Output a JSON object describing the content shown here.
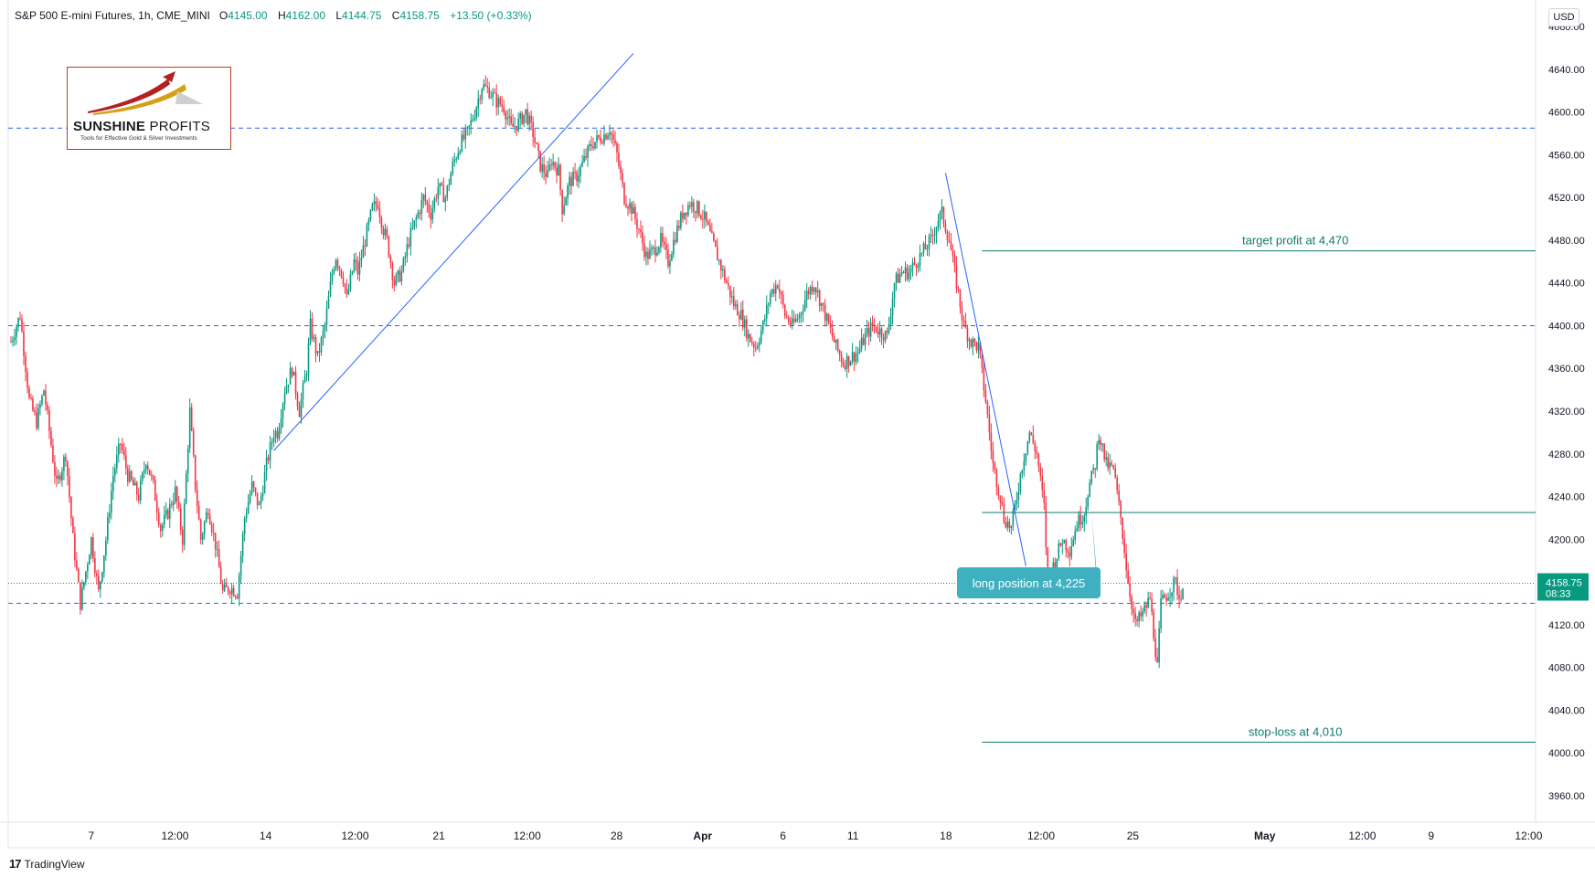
{
  "header": {
    "instrument": "S&P 500 E-mini Futures, 1h, CME_MINI",
    "open_label": "O",
    "open": "4145.00",
    "high_label": "H",
    "high": "4162.00",
    "low_label": "L",
    "low": "4144.75",
    "close_label": "C",
    "close": "4158.75",
    "change": "+13.50 (+0.33%)"
  },
  "currency_button": "USD",
  "logo": {
    "name_bold": "SUNSHINE",
    "name_rest": " PROFITS",
    "tagline": "Tools for Effective Gold & Silver Investments"
  },
  "footer": {
    "brand": "TradingView",
    "icon": "tradingview-logo-icon"
  },
  "colors": {
    "up": "#089981",
    "down": "#f23645",
    "trend": "#2962ff",
    "teal_line": "#0f7b6c",
    "callout": "#3fb0bf",
    "dashed": "#2962ff"
  },
  "chart_data": {
    "type": "candlestick",
    "title": "S&P 500 E-mini Futures, 1h, CME_MINI",
    "ylim": [
      3935,
      4705
    ],
    "y_ticks": [
      3960,
      4000,
      4040,
      4080,
      4120,
      4160,
      4200,
      4240,
      4280,
      4320,
      4360,
      4400,
      4440,
      4480,
      4520,
      4560,
      4600,
      4640,
      4680
    ],
    "y_tick_labels": [
      "3960.00",
      "4000.00",
      "4040.00",
      "4080.00",
      "4120.00",
      "4160.00",
      "4200.00",
      "4240.00",
      "4280.00",
      "4320.00",
      "4360.00",
      "4400.00",
      "4440.00",
      "4480.00",
      "4520.00",
      "4560.00",
      "4600.00",
      "4640.00",
      "4680.00"
    ],
    "x_tick_labels": [
      "7",
      "12:00",
      "14",
      "12:00",
      "21",
      "12:00",
      "28",
      "Apr",
      "6",
      "11",
      "18",
      "12:00",
      "25",
      "May",
      "12:00",
      "9",
      "12:00"
    ],
    "last_price": "4158.75",
    "countdown": "08:33",
    "horizontal_levels": [
      4585,
      4400,
      4140
    ],
    "annotations": [
      {
        "text": "target profit at 4,470",
        "value": 4470
      },
      {
        "text": "long position at 4,225",
        "value": 4225
      },
      {
        "text": "stop-loss at 4,010",
        "value": 4010
      }
    ],
    "path": [
      [
        0,
        4385
      ],
      [
        5,
        4410
      ],
      [
        10,
        4330
      ],
      [
        14,
        4310
      ],
      [
        18,
        4340
      ],
      [
        25,
        4250
      ],
      [
        30,
        4280
      ],
      [
        34,
        4200
      ],
      [
        38,
        4140
      ],
      [
        44,
        4200
      ],
      [
        48,
        4150
      ],
      [
        52,
        4200
      ],
      [
        56,
        4260
      ],
      [
        60,
        4290
      ],
      [
        64,
        4260
      ],
      [
        70,
        4240
      ],
      [
        74,
        4275
      ],
      [
        78,
        4250
      ],
      [
        82,
        4210
      ],
      [
        86,
        4225
      ],
      [
        90,
        4245
      ],
      [
        94,
        4200
      ],
      [
        98,
        4320
      ],
      [
        101,
        4250
      ],
      [
        104,
        4200
      ],
      [
        108,
        4230
      ],
      [
        112,
        4195
      ],
      [
        116,
        4150
      ],
      [
        120,
        4155
      ],
      [
        124,
        4150
      ],
      [
        128,
        4220
      ],
      [
        132,
        4250
      ],
      [
        136,
        4230
      ],
      [
        140,
        4270
      ],
      [
        144,
        4300
      ],
      [
        146,
        4300
      ],
      [
        150,
        4340
      ],
      [
        154,
        4360
      ],
      [
        158,
        4320
      ],
      [
        162,
        4360
      ],
      [
        164,
        4400
      ],
      [
        168,
        4370
      ],
      [
        172,
        4400
      ],
      [
        176,
        4450
      ],
      [
        178,
        4465
      ],
      [
        182,
        4445
      ],
      [
        184,
        4425
      ],
      [
        188,
        4460
      ],
      [
        190,
        4450
      ],
      [
        194,
        4480
      ],
      [
        198,
        4510
      ],
      [
        201,
        4515
      ],
      [
        204,
        4490
      ],
      [
        206,
        4480
      ],
      [
        210,
        4440
      ],
      [
        214,
        4450
      ],
      [
        218,
        4480
      ],
      [
        222,
        4500
      ],
      [
        226,
        4520
      ],
      [
        230,
        4505
      ],
      [
        234,
        4530
      ],
      [
        238,
        4520
      ],
      [
        242,
        4550
      ],
      [
        246,
        4570
      ],
      [
        250,
        4580
      ],
      [
        254,
        4600
      ],
      [
        258,
        4625
      ],
      [
        262,
        4620
      ],
      [
        266,
        4610
      ],
      [
        270,
        4605
      ],
      [
        274,
        4585
      ],
      [
        278,
        4590
      ],
      [
        282,
        4600
      ],
      [
        286,
        4580
      ],
      [
        290,
        4550
      ],
      [
        294,
        4540
      ],
      [
        296,
        4555
      ],
      [
        300,
        4545
      ],
      [
        302,
        4510
      ],
      [
        306,
        4535
      ],
      [
        310,
        4540
      ],
      [
        314,
        4555
      ],
      [
        318,
        4570
      ],
      [
        322,
        4575
      ],
      [
        326,
        4580
      ],
      [
        328,
        4585
      ],
      [
        332,
        4560
      ],
      [
        336,
        4520
      ],
      [
        340,
        4510
      ],
      [
        344,
        4490
      ],
      [
        348,
        4465
      ],
      [
        352,
        4470
      ],
      [
        356,
        4480
      ],
      [
        360,
        4460
      ],
      [
        364,
        4485
      ],
      [
        368,
        4505
      ],
      [
        372,
        4515
      ],
      [
        376,
        4510
      ],
      [
        380,
        4500
      ],
      [
        384,
        4480
      ],
      [
        388,
        4460
      ],
      [
        392,
        4440
      ],
      [
        396,
        4420
      ],
      [
        400,
        4410
      ],
      [
        404,
        4390
      ],
      [
        408,
        4380
      ],
      [
        412,
        4400
      ],
      [
        416,
        4430
      ],
      [
        420,
        4440
      ],
      [
        424,
        4410
      ],
      [
        428,
        4400
      ],
      [
        432,
        4410
      ],
      [
        436,
        4430
      ],
      [
        440,
        4440
      ],
      [
        444,
        4420
      ],
      [
        448,
        4400
      ],
      [
        452,
        4380
      ],
      [
        456,
        4365
      ],
      [
        460,
        4370
      ],
      [
        464,
        4375
      ],
      [
        468,
        4390
      ],
      [
        472,
        4400
      ],
      [
        476,
        4395
      ],
      [
        480,
        4390
      ],
      [
        484,
        4440
      ],
      [
        488,
        4450
      ],
      [
        492,
        4450
      ],
      [
        496,
        4460
      ],
      [
        500,
        4470
      ],
      [
        504,
        4480
      ],
      [
        508,
        4500
      ],
      [
        510,
        4505
      ],
      [
        514,
        4480
      ],
      [
        518,
        4440
      ],
      [
        522,
        4400
      ],
      [
        526,
        4385
      ],
      [
        530,
        4380
      ],
      [
        534,
        4330
      ],
      [
        538,
        4270
      ],
      [
        542,
        4240
      ],
      [
        544,
        4220
      ],
      [
        548,
        4210
      ],
      [
        550,
        4230
      ],
      [
        554,
        4270
      ],
      [
        558,
        4300
      ],
      [
        562,
        4280
      ],
      [
        566,
        4230
      ],
      [
        568,
        4160
      ],
      [
        572,
        4180
      ],
      [
        576,
        4200
      ],
      [
        580,
        4190
      ],
      [
        584,
        4215
      ],
      [
        588,
        4225
      ],
      [
        590,
        4245
      ],
      [
        594,
        4270
      ],
      [
        596,
        4300
      ],
      [
        600,
        4270
      ],
      [
        604,
        4265
      ],
      [
        608,
        4220
      ],
      [
        612,
        4160
      ],
      [
        616,
        4120
      ],
      [
        620,
        4130
      ],
      [
        624,
        4145
      ],
      [
        628,
        4080
      ],
      [
        630,
        4140
      ],
      [
        634,
        4150
      ],
      [
        638,
        4160
      ],
      [
        640,
        4145
      ],
      [
        642,
        4155
      ]
    ]
  }
}
